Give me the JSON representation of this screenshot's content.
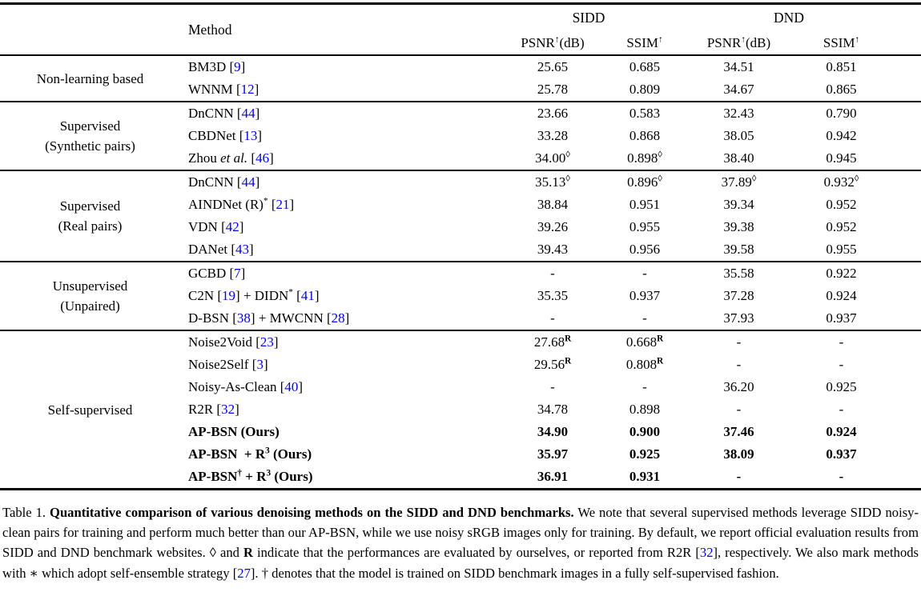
{
  "header": {
    "method": "Method",
    "sidd": "SIDD",
    "dnd": "DND",
    "psnr": [
      {
        "t": "PSNR"
      },
      {
        "t": "↑",
        "s": "sup"
      },
      {
        "t": "(dB)"
      }
    ],
    "ssim": [
      {
        "t": "SSIM"
      },
      {
        "t": "↑",
        "s": "sup"
      }
    ]
  },
  "accent_colors": {
    "citation_blue": "#0000EE",
    "text_black": "#000000"
  },
  "table": {
    "groups": [
      {
        "category": [
          "Non-learning based"
        ],
        "rows": [
          {
            "m": [
              {
                "t": "BM3D ["
              },
              {
                "t": "9",
                "s": "c"
              },
              {
                "t": "]"
              }
            ],
            "v": [
              "25.65",
              "0.685",
              "34.51",
              "0.851"
            ]
          },
          {
            "m": [
              {
                "t": "WNNM ["
              },
              {
                "t": "12",
                "s": "c"
              },
              {
                "t": "]"
              }
            ],
            "v": [
              "25.78",
              "0.809",
              "34.67",
              "0.865"
            ]
          }
        ]
      },
      {
        "category": [
          "Supervised",
          "(Synthetic pairs)"
        ],
        "rows": [
          {
            "m": [
              {
                "t": "DnCNN ["
              },
              {
                "t": "44",
                "s": "c"
              },
              {
                "t": "]"
              }
            ],
            "v": [
              "23.66",
              "0.583",
              "32.43",
              "0.790"
            ]
          },
          {
            "m": [
              {
                "t": "CBDNet ["
              },
              {
                "t": "13",
                "s": "c"
              },
              {
                "t": "]"
              }
            ],
            "v": [
              "33.28",
              "0.868",
              "38.05",
              "0.942"
            ]
          },
          {
            "m": [
              {
                "t": "Zhou "
              },
              {
                "t": "et al.",
                "s": "i"
              },
              {
                "t": " ["
              },
              {
                "t": "46",
                "s": "c"
              },
              {
                "t": "]"
              }
            ],
            "v": [
              [
                {
                  "t": "34.00"
                },
                {
                  "t": "◊",
                  "s": "sup"
                }
              ],
              [
                {
                  "t": "0.898"
                },
                {
                  "t": "◊",
                  "s": "sup"
                }
              ],
              "38.40",
              "0.945"
            ]
          }
        ]
      },
      {
        "category": [
          "Supervised",
          "(Real pairs)"
        ],
        "rows": [
          {
            "m": [
              {
                "t": "DnCNN ["
              },
              {
                "t": "44",
                "s": "c"
              },
              {
                "t": "]"
              }
            ],
            "v": [
              [
                {
                  "t": "35.13"
                },
                {
                  "t": "◊",
                  "s": "sup"
                }
              ],
              [
                {
                  "t": "0.896"
                },
                {
                  "t": "◊",
                  "s": "sup"
                }
              ],
              [
                {
                  "t": "37.89"
                },
                {
                  "t": "◊",
                  "s": "sup"
                }
              ],
              [
                {
                  "t": "0.932"
                },
                {
                  "t": "◊",
                  "s": "sup"
                }
              ]
            ]
          },
          {
            "m": [
              {
                "t": "AINDNet (R)"
              },
              {
                "t": "*",
                "s": "sup"
              },
              {
                "t": " ["
              },
              {
                "t": "21",
                "s": "c"
              },
              {
                "t": "]"
              }
            ],
            "v": [
              "38.84",
              "0.951",
              "39.34",
              "0.952"
            ]
          },
          {
            "m": [
              {
                "t": "VDN ["
              },
              {
                "t": "42",
                "s": "c"
              },
              {
                "t": "]"
              }
            ],
            "v": [
              "39.26",
              "0.955",
              "39.38",
              "0.952"
            ]
          },
          {
            "m": [
              {
                "t": "DANet ["
              },
              {
                "t": "43",
                "s": "c"
              },
              {
                "t": "]"
              }
            ],
            "v": [
              "39.43",
              "0.956",
              "39.58",
              "0.955"
            ]
          }
        ]
      },
      {
        "category": [
          "Unsupervised",
          "(Unpaired)"
        ],
        "rows": [
          {
            "m": [
              {
                "t": "GCBD ["
              },
              {
                "t": "7",
                "s": "c"
              },
              {
                "t": "]"
              }
            ],
            "v": [
              "-",
              "-",
              "35.58",
              "0.922"
            ]
          },
          {
            "m": [
              {
                "t": "C2N ["
              },
              {
                "t": "19",
                "s": "c"
              },
              {
                "t": "] + DIDN"
              },
              {
                "t": "*",
                "s": "sup"
              },
              {
                "t": " ["
              },
              {
                "t": "41",
                "s": "c"
              },
              {
                "t": "]"
              }
            ],
            "v": [
              "35.35",
              "0.937",
              "37.28",
              "0.924"
            ]
          },
          {
            "m": [
              {
                "t": "D-BSN ["
              },
              {
                "t": "38",
                "s": "c"
              },
              {
                "t": "] + MWCNN ["
              },
              {
                "t": "28",
                "s": "c"
              },
              {
                "t": "]"
              }
            ],
            "v": [
              "-",
              "-",
              "37.93",
              "0.937"
            ]
          }
        ]
      },
      {
        "category": [
          "Self-supervised"
        ],
        "rows": [
          {
            "m": [
              {
                "t": "Noise2Void ["
              },
              {
                "t": "23",
                "s": "c"
              },
              {
                "t": "]"
              }
            ],
            "v": [
              [
                {
                  "t": "27.68"
                },
                {
                  "t": "R",
                  "s": "supb"
                }
              ],
              [
                {
                  "t": "0.668"
                },
                {
                  "t": "R",
                  "s": "supb"
                }
              ],
              "-",
              "-"
            ]
          },
          {
            "m": [
              {
                "t": "Noise2Self ["
              },
              {
                "t": "3",
                "s": "c"
              },
              {
                "t": "]"
              }
            ],
            "v": [
              [
                {
                  "t": "29.56"
                },
                {
                  "t": "R",
                  "s": "supb"
                }
              ],
              [
                {
                  "t": "0.808"
                },
                {
                  "t": "R",
                  "s": "supb"
                }
              ],
              "-",
              "-"
            ]
          },
          {
            "m": [
              {
                "t": "Noisy-As-Clean ["
              },
              {
                "t": "40",
                "s": "c"
              },
              {
                "t": "]"
              }
            ],
            "v": [
              "-",
              "-",
              "36.20",
              "0.925"
            ]
          },
          {
            "m": [
              {
                "t": "R2R ["
              },
              {
                "t": "32",
                "s": "c"
              },
              {
                "t": "]"
              }
            ],
            "v": [
              "34.78",
              "0.898",
              "-",
              "-"
            ]
          },
          {
            "m": [
              {
                "t": "AP-BSN (Ours)"
              }
            ],
            "v": [
              "34.90",
              "0.900",
              "37.46",
              "0.924"
            ],
            "b": true
          },
          {
            "m": [
              {
                "t": "AP-BSN  + R"
              },
              {
                "t": "3",
                "s": "sup"
              },
              {
                "t": " (Ours)"
              }
            ],
            "v": [
              "35.97",
              "0.925",
              "38.09",
              "0.937"
            ],
            "b": true
          },
          {
            "m": [
              {
                "t": "AP-BSN"
              },
              {
                "t": "†",
                "s": "sup"
              },
              {
                "t": " + R"
              },
              {
                "t": "3",
                "s": "sup"
              },
              {
                "t": " (Ours)"
              }
            ],
            "v": [
              "36.91",
              "0.931",
              "-",
              "-"
            ],
            "b": true
          }
        ]
      }
    ]
  },
  "caption": [
    {
      "t": "Table 1. "
    },
    {
      "t": "Quantitative comparison of various denoising methods on the SIDD and DND benchmarks.",
      "s": "b"
    },
    {
      "t": " We note that several supervised methods leverage SIDD noisy-clean pairs for training and perform much better than our AP-BSN, while we use noisy sRGB images only for training. By default, we report official evaluation results from SIDD and DND benchmark websites. ◊ and "
    },
    {
      "t": "R",
      "s": "b"
    },
    {
      "t": " indicate that the performances are evaluated by ourselves, or reported from R2R ["
    },
    {
      "t": "32",
      "s": "c"
    },
    {
      "t": "], respectively. We also mark methods with ∗ which adopt self-ensemble strategy ["
    },
    {
      "t": "27",
      "s": "c"
    },
    {
      "t": "]. † denotes that the model is trained on SIDD benchmark images in a fully self-supervised fashion."
    }
  ]
}
